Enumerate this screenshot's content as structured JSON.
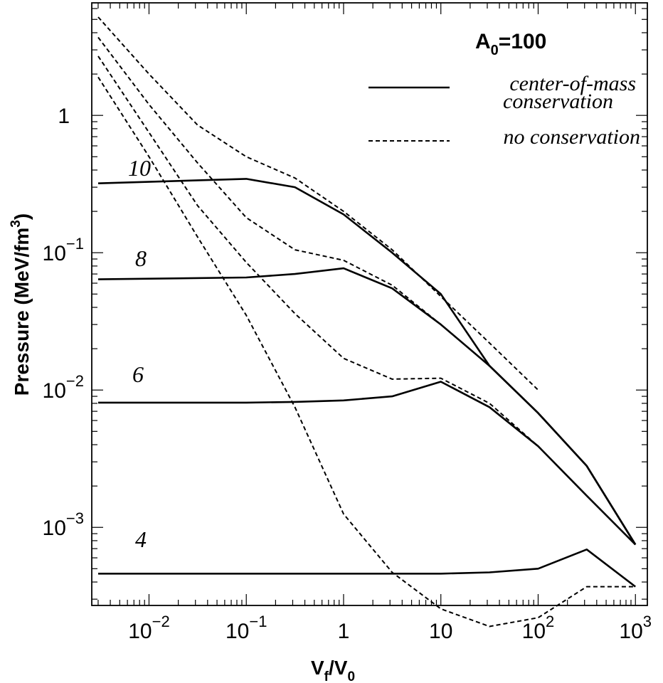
{
  "chart_data": {
    "type": "line",
    "x_scale": "log",
    "y_scale": "log",
    "xlabel": {
      "base": "V",
      "base_sub": "f",
      "slash": "/V",
      "den_sub": "0"
    },
    "ylabel": {
      "text": "Pressure (MeV/fm",
      "sup": "3",
      "close": ")"
    },
    "xlim": [
      0.00258,
      1326
    ],
    "ylim": [
      0.00027,
      6.6
    ],
    "x_ticks": [
      {
        "value": 0.01,
        "base": "10",
        "exp": "−2"
      },
      {
        "value": 0.1,
        "base": "10",
        "exp": "−1"
      },
      {
        "value": 1,
        "base": "1",
        "exp": ""
      },
      {
        "value": 10,
        "base": "10",
        "exp": ""
      },
      {
        "value": 100,
        "base": "10",
        "exp": "2"
      },
      {
        "value": 1000,
        "base": "10",
        "exp": "3"
      }
    ],
    "y_ticks": [
      {
        "value": 0.001,
        "base": "10",
        "exp": "−3"
      },
      {
        "value": 0.01,
        "base": "10",
        "exp": "−2"
      },
      {
        "value": 0.1,
        "base": "10",
        "exp": "−1"
      },
      {
        "value": 1,
        "base": "1",
        "exp": ""
      }
    ],
    "legend": {
      "title_base": "A",
      "title_sub": "0",
      "title_rest": "=100",
      "entries": [
        {
          "style": "solid",
          "line1": "center-of-mass",
          "line2": "conservation"
        },
        {
          "style": "dashed",
          "line1": "no conservation",
          "line2": ""
        }
      ]
    },
    "series": [
      {
        "label": "10",
        "solid": {
          "x": [
            0.003,
            0.1,
            0.316,
            1,
            3.16,
            10,
            31.6,
            100,
            316,
            1000
          ],
          "y": [
            0.32,
            0.345,
            0.3,
            0.19,
            0.1,
            0.05,
            0.015,
            0.0068,
            0.0028,
            0.00075
          ]
        },
        "dashed": {
          "x": [
            0.003,
            0.01,
            0.0316,
            0.1,
            0.316,
            1,
            3.16,
            10,
            31.6,
            100
          ],
          "y": [
            5.2,
            2.0,
            0.85,
            0.5,
            0.35,
            0.2,
            0.105,
            0.048,
            0.022,
            0.01
          ]
        }
      },
      {
        "label": "8",
        "solid": {
          "x": [
            0.003,
            0.1,
            0.316,
            1,
            3.16,
            10,
            31.6,
            100,
            316,
            1000
          ],
          "y": [
            0.064,
            0.066,
            0.07,
            0.077,
            0.055,
            0.03,
            0.015,
            0.0068,
            0.0028,
            0.00075
          ]
        },
        "dashed": {
          "x": [
            0.003,
            0.01,
            0.0316,
            0.1,
            0.316,
            1,
            3.16,
            10,
            31.6,
            100,
            316,
            1000
          ],
          "y": [
            3.7,
            1.2,
            0.45,
            0.18,
            0.105,
            0.088,
            0.058,
            0.03,
            0.015,
            0.0068,
            0.0028,
            0.00075
          ]
        }
      },
      {
        "label": "6",
        "solid": {
          "x": [
            0.003,
            0.1,
            0.316,
            1,
            3.16,
            10,
            31.6,
            100,
            316,
            1000
          ],
          "y": [
            0.0081,
            0.0081,
            0.0082,
            0.0084,
            0.009,
            0.0115,
            0.0075,
            0.0039,
            0.0017,
            0.00075
          ]
        },
        "dashed": {
          "x": [
            0.003,
            0.01,
            0.0316,
            0.1,
            0.316,
            1,
            3.16,
            10,
            31.6,
            100,
            316,
            1000
          ],
          "y": [
            2.7,
            0.75,
            0.22,
            0.085,
            0.036,
            0.017,
            0.012,
            0.0122,
            0.008,
            0.0039,
            0.0017,
            0.00075
          ]
        }
      },
      {
        "label": "4",
        "solid": {
          "x": [
            0.003,
            0.1,
            1,
            10,
            31.6,
            100,
            316,
            1000
          ],
          "y": [
            0.00046,
            0.00046,
            0.00046,
            0.00046,
            0.00047,
            0.0005,
            0.00069,
            0.00037
          ]
        },
        "dashed": {
          "x": [
            0.003,
            0.01,
            0.0316,
            0.1,
            0.316,
            1,
            3.16,
            10,
            31.6,
            100,
            316,
            1000
          ],
          "y": [
            1.9,
            0.5,
            0.13,
            0.035,
            0.0075,
            0.00125,
            0.00047,
            0.000255,
            0.00019,
            0.00022,
            0.00037,
            0.00037
          ]
        }
      }
    ]
  }
}
